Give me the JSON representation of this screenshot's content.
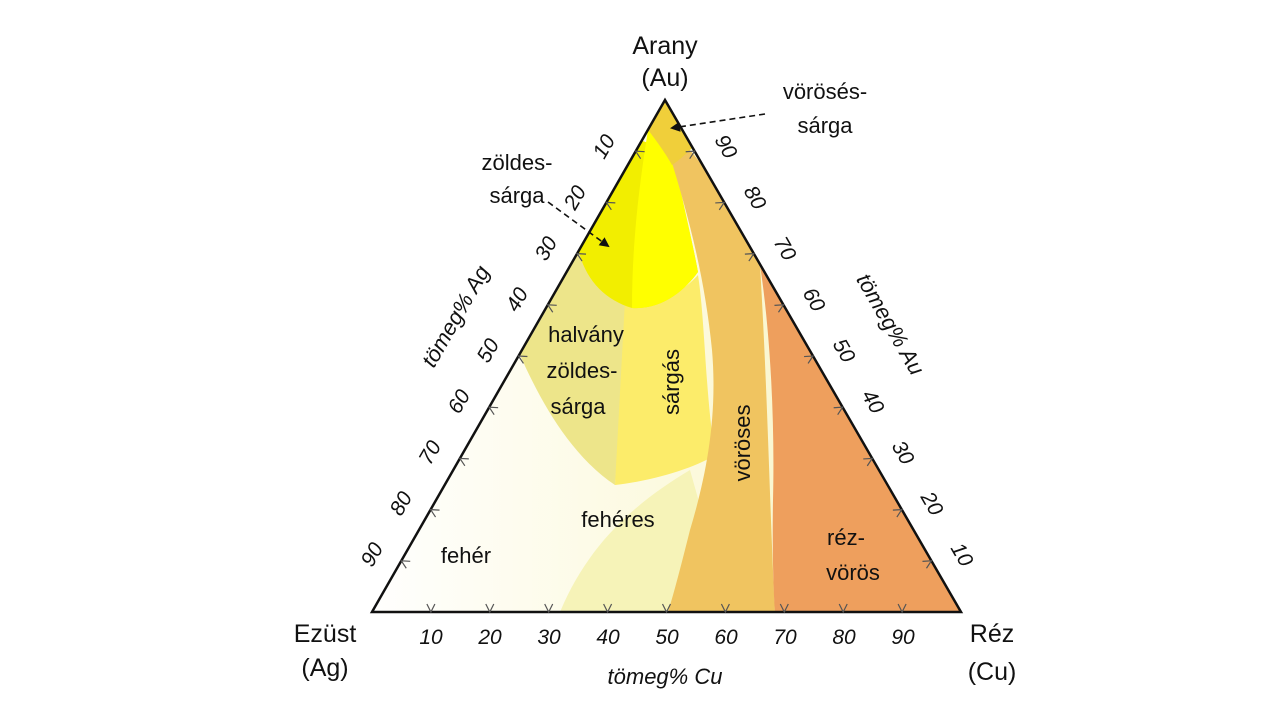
{
  "vertices": {
    "top": [
      "Arany",
      "(Au)"
    ],
    "left": [
      "Ezüst",
      "(Ag)"
    ],
    "right": [
      "Réz",
      "(Cu)"
    ]
  },
  "axes": {
    "bottom": {
      "name": "tömeg% Cu",
      "ticks": [
        "10",
        "20",
        "30",
        "40",
        "50",
        "60",
        "70",
        "80",
        "90"
      ]
    },
    "left": {
      "name": "tömeg% Ag",
      "ticks": [
        "10",
        "20",
        "30",
        "40",
        "50",
        "60",
        "70",
        "80",
        "90"
      ]
    },
    "right": {
      "name": "tömeg% Au",
      "ticks": [
        "90",
        "80",
        "70",
        "60",
        "50",
        "40",
        "30",
        "20",
        "10"
      ]
    }
  },
  "regions": {
    "zoldes_sarga": [
      "zöldes-",
      "sárga"
    ],
    "voroses_sarga": [
      "vörösés-",
      "sárga"
    ],
    "halvany": [
      "halvány",
      "zöldes-",
      "sárga"
    ],
    "sargas": "sárgás",
    "voroses": "vöröses",
    "feheres": "fehéres",
    "feher": "fehér",
    "rez_voros": [
      "réz-",
      "vörös"
    ]
  },
  "colors": {
    "feher": "#fdfbe6",
    "feheres": "#f5f1b0",
    "halvany": "#efe78a",
    "sargas": "#fced6b",
    "zoldes_sarga": "#f3f000",
    "yellow": "#ffff00",
    "voroses": "#f0c460",
    "voroses_sarga": "#f0cf3a",
    "rez_voros": "#ef9f5e"
  }
}
